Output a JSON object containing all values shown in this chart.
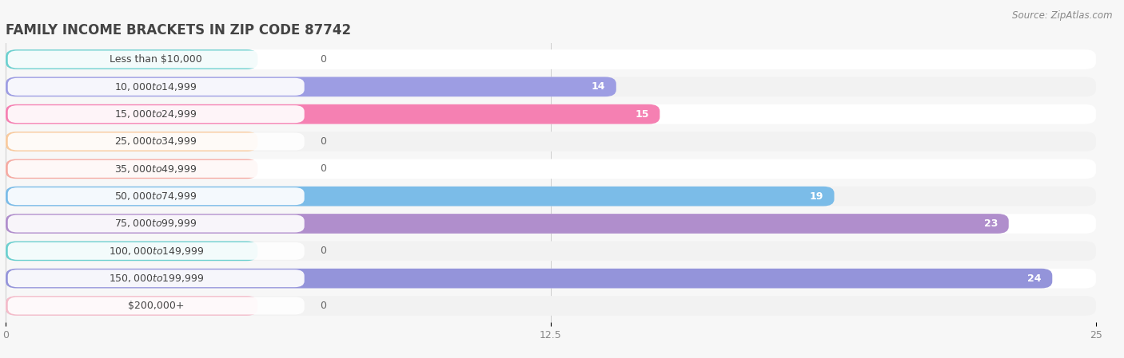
{
  "title": "FAMILY INCOME BRACKETS IN ZIP CODE 87742",
  "source": "Source: ZipAtlas.com",
  "categories": [
    "Less than $10,000",
    "$10,000 to $14,999",
    "$15,000 to $24,999",
    "$25,000 to $34,999",
    "$35,000 to $49,999",
    "$50,000 to $74,999",
    "$75,000 to $99,999",
    "$100,000 to $149,999",
    "$150,000 to $199,999",
    "$200,000+"
  ],
  "values": [
    0,
    14,
    15,
    0,
    0,
    19,
    23,
    0,
    24,
    0
  ],
  "bar_colors": [
    "#6dd0cf",
    "#9d9de3",
    "#f580b2",
    "#f8ca9e",
    "#f5aba3",
    "#7bbce8",
    "#b08ecc",
    "#6dd0cf",
    "#9494da",
    "#f4bcca"
  ],
  "xlim": [
    0,
    25
  ],
  "xticks": [
    0,
    12.5,
    25
  ],
  "background_color": "#f7f7f7",
  "bar_bg_color": "#e9e9e9",
  "row_bg_colors": [
    "#ffffff",
    "#f2f2f2"
  ],
  "title_fontsize": 12,
  "label_fontsize": 9,
  "value_fontsize": 9
}
